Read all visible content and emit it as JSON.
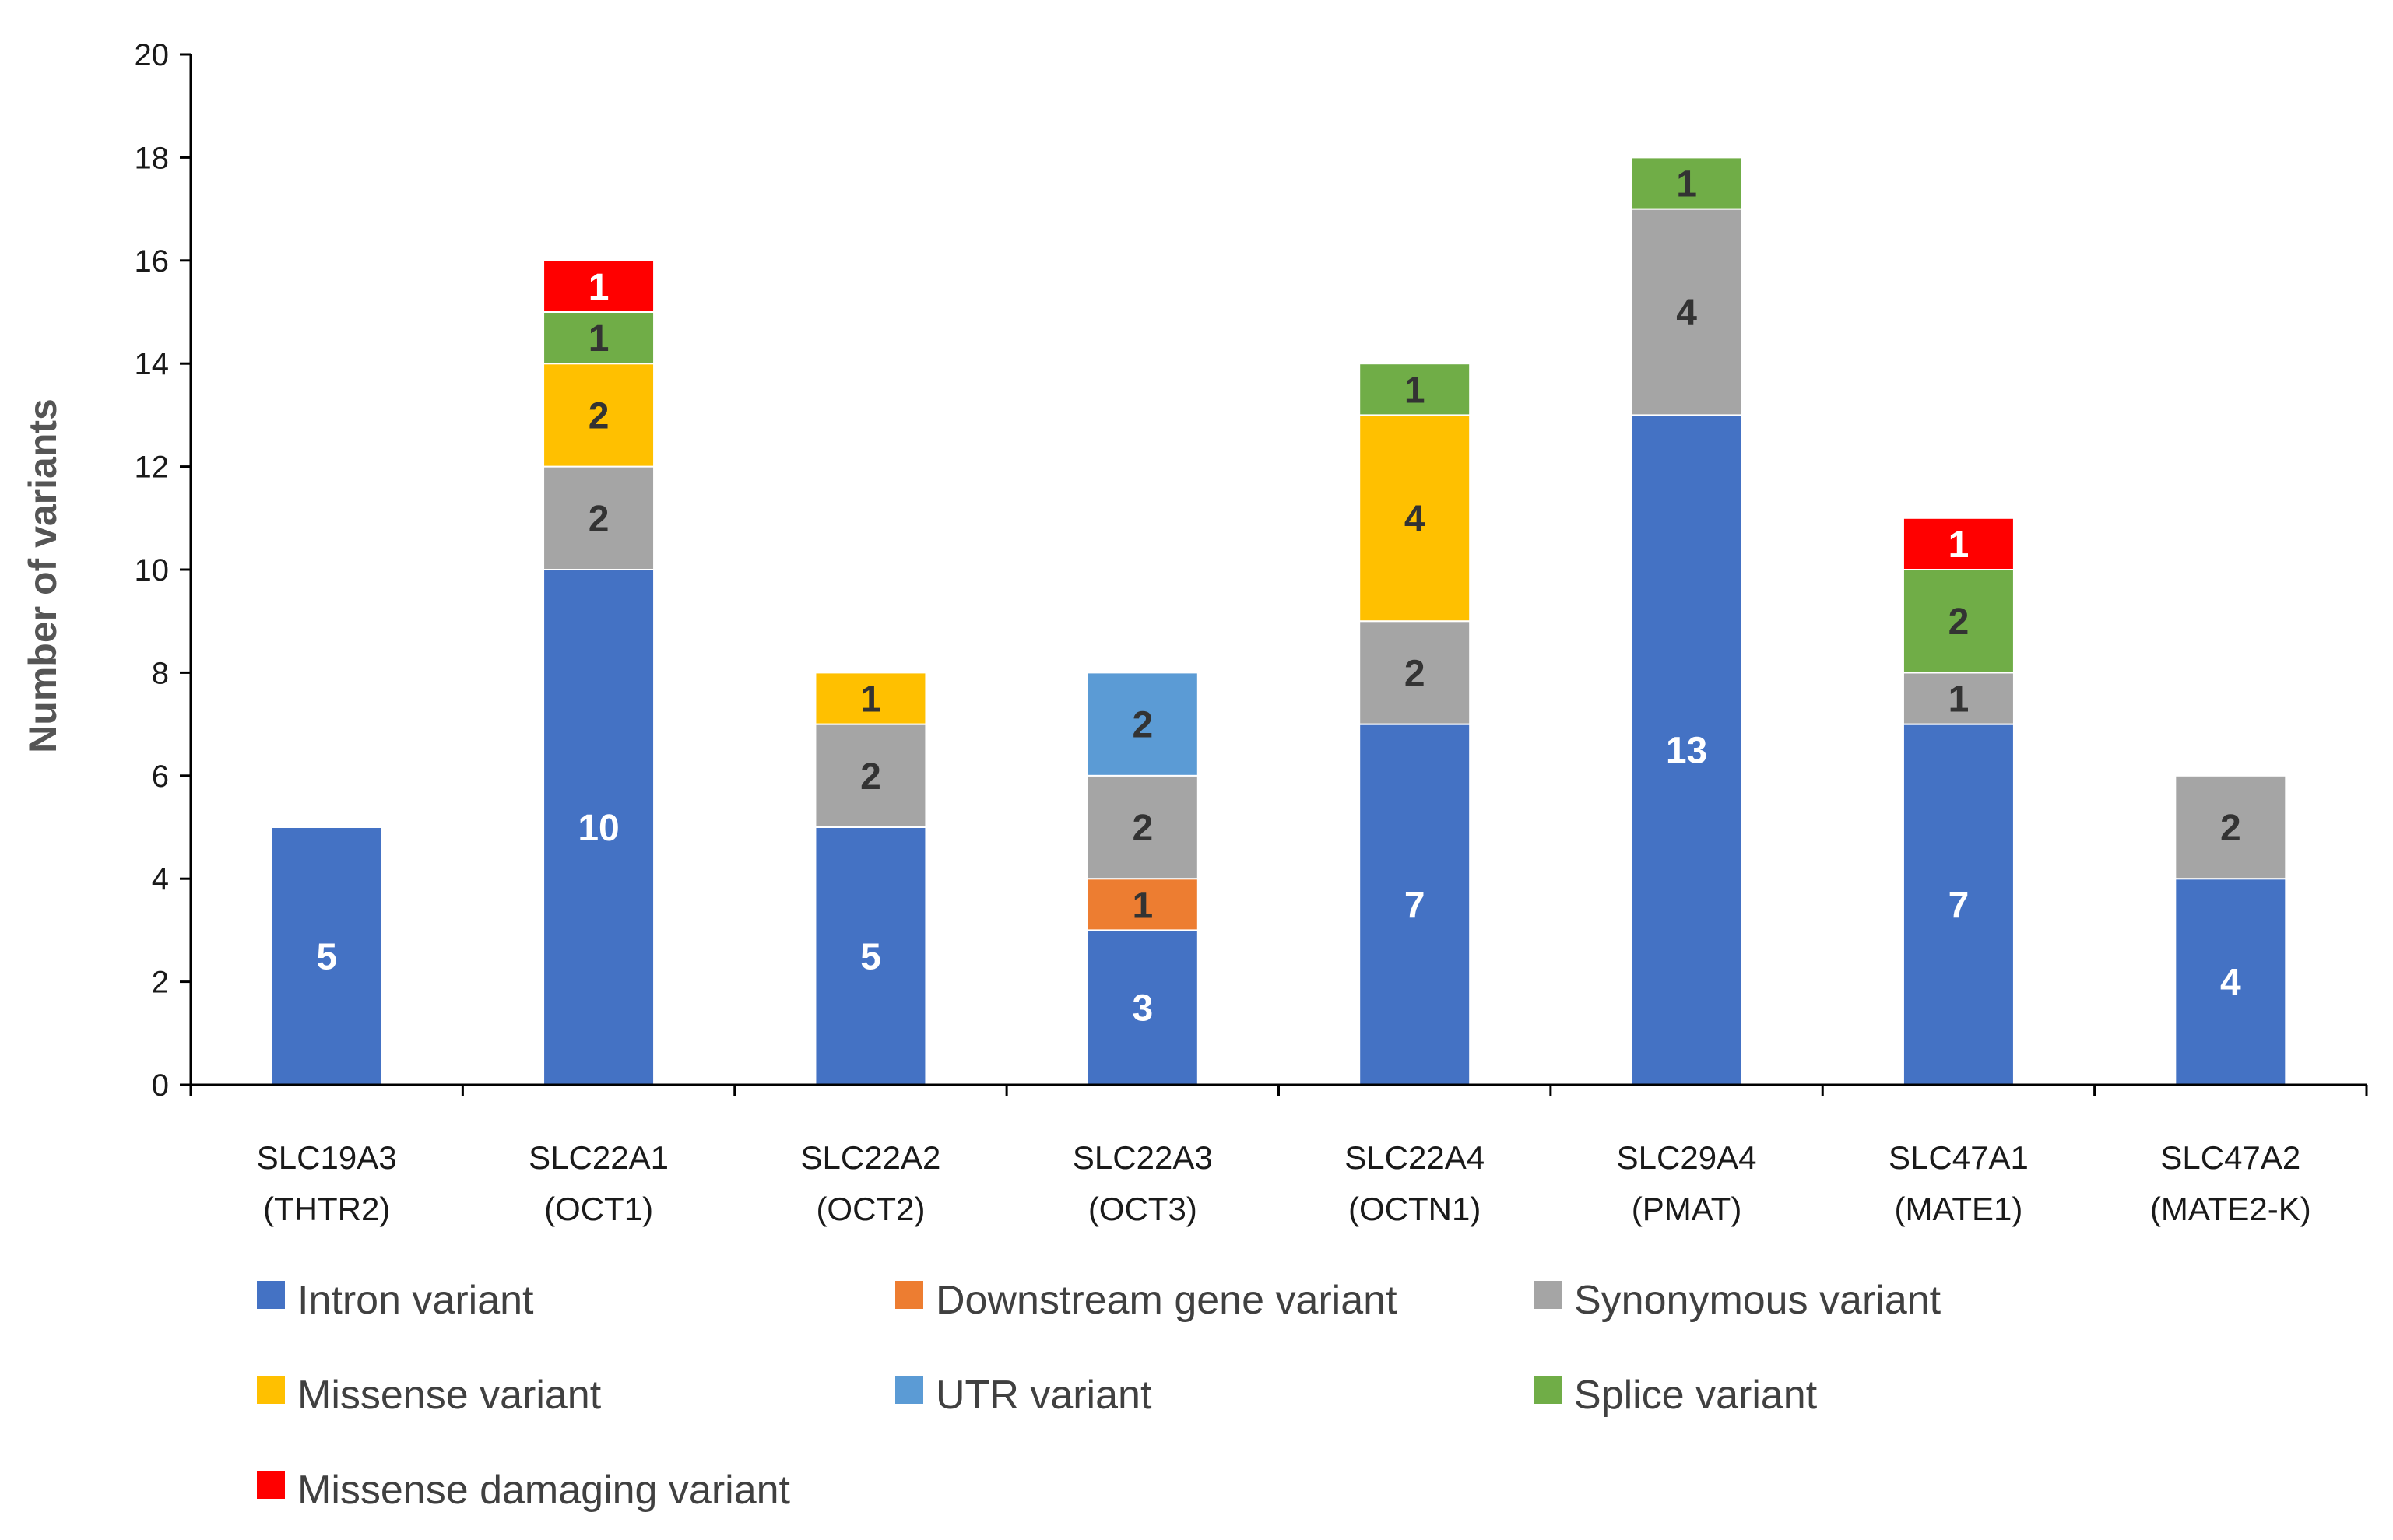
{
  "chart_data": {
    "type": "bar",
    "stacked": true,
    "title": "",
    "xlabel": "",
    "ylabel": "Number of variants",
    "ylim": [
      0,
      20
    ],
    "yticks": [
      0,
      2,
      4,
      6,
      8,
      10,
      12,
      14,
      16,
      18,
      20
    ],
    "grid": false,
    "legend_position": "bottom",
    "categories": [
      [
        "SLC19A3",
        "(THTR2)"
      ],
      [
        "SLC22A1",
        "(OCT1)"
      ],
      [
        "SLC22A2",
        "(OCT2)"
      ],
      [
        "SLC22A3",
        "(OCT3)"
      ],
      [
        "SLC22A4",
        "(OCTN1)"
      ],
      [
        "SLC29A4",
        "(PMAT)"
      ],
      [
        "SLC47A1",
        "(MATE1)"
      ],
      [
        "SLC47A2",
        "(MATE2-K)"
      ]
    ],
    "series": [
      {
        "name": "Intron variant",
        "color": "#4472C4",
        "label_color": "#ffffff",
        "values": [
          5,
          10,
          5,
          3,
          7,
          13,
          7,
          4
        ]
      },
      {
        "name": "Downstream gene variant",
        "color": "#ED7D31",
        "label_color": "#333333",
        "values": [
          0,
          0,
          0,
          1,
          0,
          0,
          0,
          0
        ]
      },
      {
        "name": "Synonymous variant",
        "color": "#A5A5A5",
        "label_color": "#333333",
        "values": [
          0,
          2,
          2,
          2,
          2,
          4,
          1,
          2
        ]
      },
      {
        "name": "Missense variant",
        "color": "#FFC000",
        "label_color": "#333333",
        "values": [
          0,
          2,
          1,
          0,
          4,
          0,
          0,
          0
        ]
      },
      {
        "name": "UTR variant",
        "color": "#5B9BD5",
        "label_color": "#333333",
        "values": [
          0,
          0,
          0,
          2,
          0,
          0,
          0,
          0
        ]
      },
      {
        "name": "Splice variant",
        "color": "#70AD47",
        "label_color": "#333333",
        "values": [
          0,
          1,
          0,
          0,
          1,
          1,
          2,
          0
        ]
      },
      {
        "name": "Missense damaging variant",
        "color": "#FF0000",
        "label_color": "#ffffff",
        "values": [
          0,
          1,
          0,
          0,
          0,
          0,
          1,
          0
        ]
      }
    ]
  }
}
